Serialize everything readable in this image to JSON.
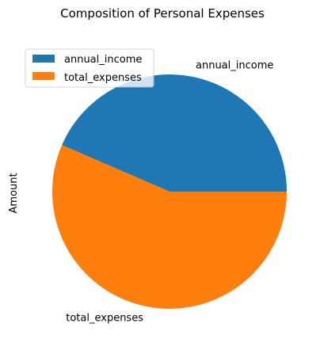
{
  "chart_data": {
    "type": "pie",
    "title": "Composition of Personal Expenses",
    "ylabel": "Amount",
    "xlabel": "",
    "slices": [
      {
        "label": "annual_income",
        "value": 43.5,
        "color": "#1f77b4"
      },
      {
        "label": "total_expenses",
        "value": 56.5,
        "color": "#ff7f0e"
      }
    ],
    "legend": {
      "placement": "top-left",
      "entries": [
        "annual_income",
        "total_expenses"
      ]
    },
    "start_angle": 0,
    "direction": "counterclockwise"
  }
}
